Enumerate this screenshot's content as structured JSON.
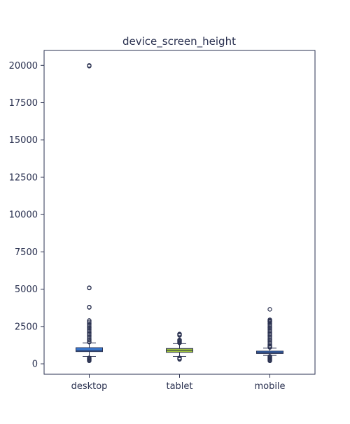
{
  "chart_data": {
    "type": "box",
    "title": "device_screen_height",
    "xlabel": "",
    "ylabel": "",
    "ylim": [
      -700,
      21000
    ],
    "yticks": [
      0,
      2500,
      5000,
      7500,
      10000,
      12500,
      15000,
      17500,
      20000
    ],
    "ytick_labels": [
      "0",
      "2500",
      "5000",
      "7500",
      "10000",
      "12500",
      "15000",
      "17500",
      "20000"
    ],
    "grid": false,
    "categories": [
      "desktop",
      "tablet",
      "mobile"
    ],
    "boxes": [
      {
        "category": "desktop",
        "color": "#3b7dd8",
        "whisker_low": 500,
        "q1": 820,
        "median": 900,
        "q3": 1080,
        "whisker_high": 1400,
        "outliers": [
          20000,
          19950,
          5100,
          5080,
          3800,
          3780,
          2900,
          2800,
          2700,
          2600,
          2500,
          2400,
          2300,
          2200,
          2100,
          2000,
          1900,
          1800,
          1700,
          1600,
          1500,
          1450,
          400,
          350,
          300,
          250,
          200
        ]
      },
      {
        "category": "tablet",
        "color": "#a4c93c",
        "whisker_low": 500,
        "q1": 768,
        "median": 900,
        "q3": 1024,
        "whisker_high": 1350,
        "outliers": [
          2000,
          1950,
          1900,
          1600,
          1550,
          1500,
          1450,
          1400,
          400,
          350,
          300
        ]
      },
      {
        "category": "mobile",
        "color": "#3b7dd8",
        "whisker_low": 560,
        "q1": 690,
        "median": 760,
        "q3": 850,
        "whisker_high": 1050,
        "outliers": [
          3650,
          2950,
          2900,
          2850,
          2800,
          2700,
          2600,
          2500,
          2400,
          2300,
          2200,
          2100,
          2000,
          1900,
          1800,
          1700,
          1600,
          1500,
          1400,
          1300,
          1200,
          1150,
          1100,
          500,
          450,
          400,
          350,
          300,
          250,
          200
        ]
      }
    ]
  }
}
